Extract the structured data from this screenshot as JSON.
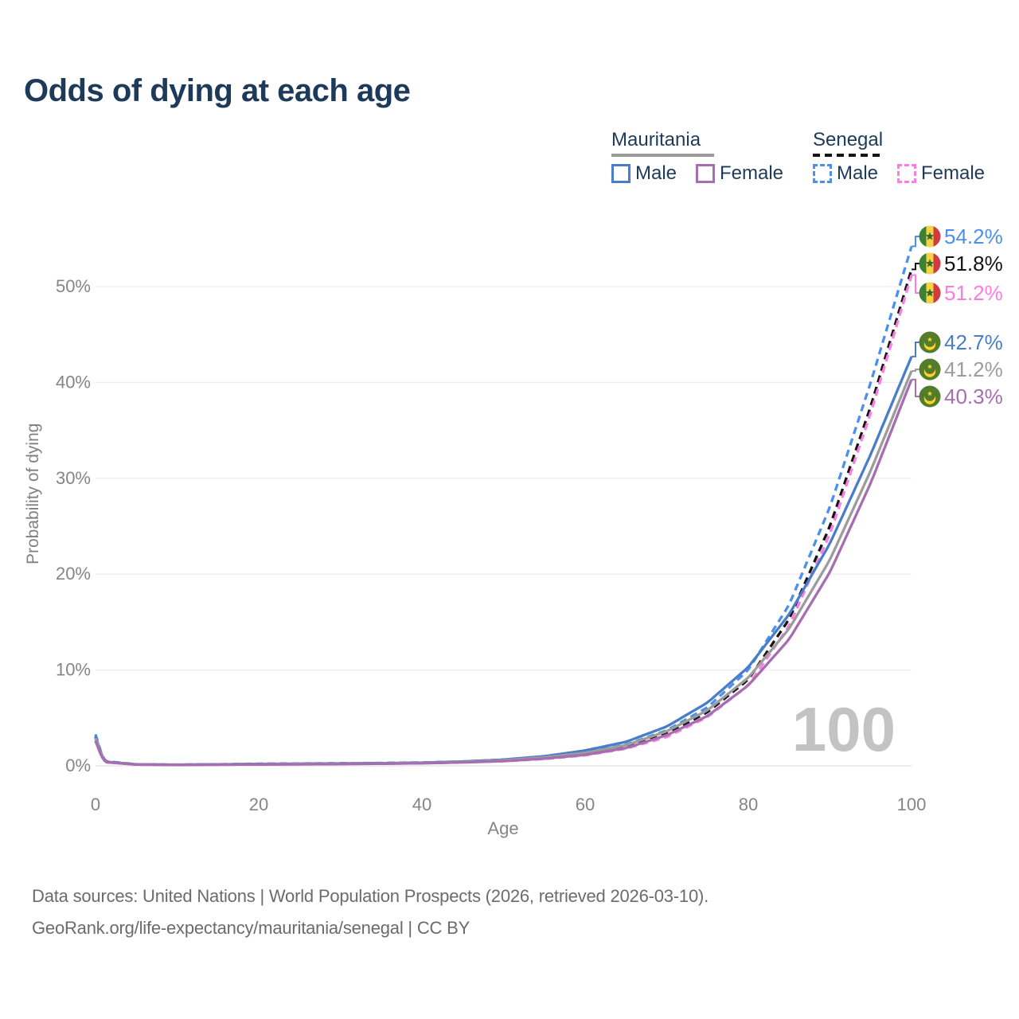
{
  "title": "Odds of dying at each age",
  "legend": {
    "groups": [
      {
        "name": "Mauritania",
        "line_style": "solid",
        "underline_color": "#9c9c9c",
        "items": [
          {
            "label": "Male",
            "color": "#4a7dc9",
            "dashed": false
          },
          {
            "label": "Female",
            "color": "#a76db1",
            "dashed": false
          }
        ]
      },
      {
        "name": "Senegal",
        "line_style": "dashed",
        "underline_color": "#141414",
        "items": [
          {
            "label": "Male",
            "color": "#4b90ea",
            "dashed": true
          },
          {
            "label": "Female",
            "color": "#fb7ce2",
            "dashed": true
          }
        ]
      }
    ]
  },
  "chart_data": {
    "type": "line",
    "title": "Odds of dying at each age",
    "xlabel": "Age",
    "ylabel": "Probability of dying",
    "x_ticks": [
      0,
      20,
      40,
      60,
      80,
      100
    ],
    "y_tick_labels": [
      "0%",
      "10%",
      "20%",
      "30%",
      "40%",
      "50%"
    ],
    "y_tick_values": [
      0,
      10,
      20,
      30,
      40,
      50
    ],
    "xlim": [
      0,
      100
    ],
    "ylim": [
      0,
      56
    ],
    "grid": "horizontal",
    "legend_position": "top-right",
    "watermark": "100",
    "x": [
      0,
      1,
      5,
      10,
      15,
      20,
      25,
      30,
      35,
      40,
      45,
      50,
      55,
      60,
      65,
      70,
      75,
      80,
      85,
      90,
      95,
      100
    ],
    "series": [
      {
        "name": "Senegal Male",
        "country": "senegal",
        "sex": "male",
        "color": "#4b90ea",
        "dashed": true,
        "end_label": "54.2%",
        "values": [
          3.3,
          0.5,
          0.16,
          0.12,
          0.16,
          0.22,
          0.24,
          0.27,
          0.3,
          0.35,
          0.45,
          0.62,
          0.92,
          1.4,
          2.2,
          3.7,
          6.1,
          10.0,
          16.8,
          27.0,
          40.0,
          54.2
        ]
      },
      {
        "name": "Senegal Total",
        "country": "senegal",
        "sex": "both",
        "color": "#141414",
        "dashed": true,
        "end_label": "51.8%",
        "values": [
          3.0,
          0.45,
          0.14,
          0.11,
          0.14,
          0.18,
          0.2,
          0.23,
          0.26,
          0.31,
          0.4,
          0.55,
          0.82,
          1.25,
          2.0,
          3.35,
          5.6,
          9.0,
          15.3,
          25.0,
          37.5,
          51.8
        ]
      },
      {
        "name": "Senegal Female",
        "country": "senegal",
        "sex": "female",
        "color": "#fb7ce2",
        "dashed": true,
        "end_label": "51.2%",
        "values": [
          2.7,
          0.4,
          0.13,
          0.1,
          0.12,
          0.15,
          0.17,
          0.2,
          0.23,
          0.28,
          0.36,
          0.48,
          0.72,
          1.1,
          1.8,
          3.0,
          5.1,
          8.4,
          14.6,
          24.2,
          36.8,
          51.2
        ]
      },
      {
        "name": "Mauritania Male",
        "country": "mauritania",
        "sex": "male",
        "color": "#4a7dc9",
        "dashed": false,
        "end_label": "42.7%",
        "values": [
          3.1,
          0.45,
          0.15,
          0.12,
          0.15,
          0.2,
          0.22,
          0.25,
          0.28,
          0.33,
          0.45,
          0.65,
          1.0,
          1.6,
          2.5,
          4.1,
          6.6,
          10.3,
          15.8,
          23.2,
          32.5,
          42.7
        ]
      },
      {
        "name": "Mauritania Total",
        "country": "mauritania",
        "sex": "both",
        "color": "#9c9c9c",
        "dashed": false,
        "end_label": "41.2%",
        "values": [
          2.9,
          0.42,
          0.14,
          0.11,
          0.13,
          0.17,
          0.19,
          0.22,
          0.25,
          0.3,
          0.4,
          0.58,
          0.88,
          1.35,
          2.15,
          3.6,
          5.8,
          9.2,
          14.3,
          21.5,
          30.8,
          41.2
        ]
      },
      {
        "name": "Mauritania Female",
        "country": "mauritania",
        "sex": "female",
        "color": "#a76db1",
        "dashed": false,
        "end_label": "40.3%",
        "values": [
          2.6,
          0.4,
          0.13,
          0.1,
          0.12,
          0.14,
          0.16,
          0.19,
          0.22,
          0.27,
          0.36,
          0.5,
          0.75,
          1.15,
          1.85,
          3.2,
          5.2,
          8.4,
          13.2,
          20.2,
          29.5,
          40.3
        ]
      }
    ],
    "flag_colors": {
      "senegal": {
        "green": "#3f8133",
        "yellow": "#f5d348",
        "red": "#d03a40",
        "star": "#2f6b2a"
      },
      "mauritania": {
        "green": "#537c2b",
        "yellow": "#ffd230"
      }
    }
  },
  "axis_colors": {
    "tick_text": "#858585",
    "grid": "#ededed",
    "zero_line": "#e1e1e1",
    "watermark": "#c3c3c3"
  },
  "footer": {
    "line1": "Data sources: United Nations | World Population Prospects (2026, retrieved 2026-03-10).",
    "line2": "GeoRank.org/life-expectancy/mauritania/senegal | CC BY"
  }
}
